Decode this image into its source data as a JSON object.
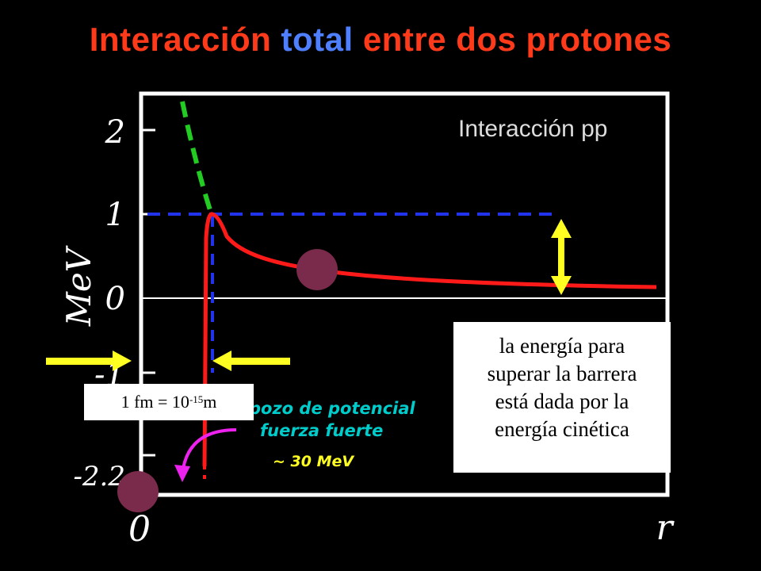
{
  "title": {
    "part1": "Interacción",
    "part2": "total",
    "part3": "entre dos protones"
  },
  "colors": {
    "title_main": "#ff3a1a",
    "title_accent": "#4d7fff",
    "potential_curve": "#ff1a1a",
    "coulomb_extension": "#22cc22",
    "guide_lines": "#2233ee",
    "arrows": "#ffff22",
    "proton": "#7a2a4a",
    "annotation_text": "#00cccc",
    "annotation_arrow": "#ee22ee",
    "annotation_value": "#ffff22"
  },
  "plot": {
    "legend": "Interacción pp",
    "y_axis_label": "MeV",
    "x_axis_label": "r",
    "origin_label": "0",
    "y_ticks": [
      "2",
      "1",
      "0",
      "-1",
      "-2.2"
    ]
  },
  "annotation": {
    "line1": "pozo de potencial",
    "line2": "fuerza fuerte",
    "value": "~ 30 MeV"
  },
  "info_box": {
    "lines": [
      "la energía para",
      "superar la barrera",
      "está dada por la",
      "energía cinética"
    ]
  },
  "distance_label": {
    "prefix": "1 fm = 10",
    "exponent": "-15",
    "suffix": "m"
  }
}
